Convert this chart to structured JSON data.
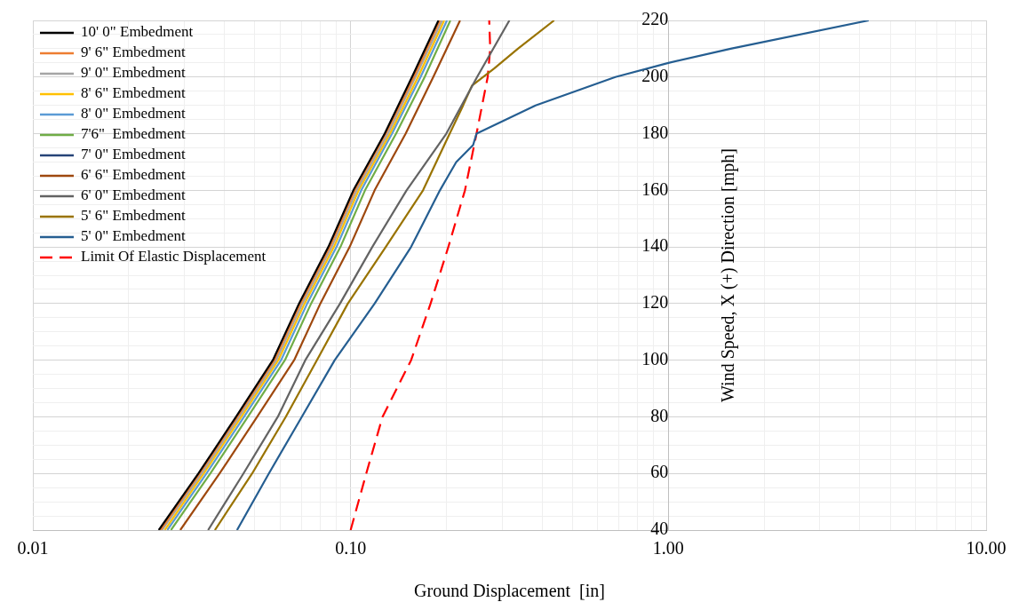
{
  "chart_data": {
    "type": "line",
    "xlabel": "Ground Displacement  [in]",
    "ylabel": "Wind Speed, X (+) Direction [mph]",
    "log": "x",
    "grid": true,
    "legend": "top left",
    "marker": "none",
    "xlim": [
      0.01,
      10
    ],
    "xticks": [
      {
        "value": 0.01,
        "label": "0.01"
      },
      {
        "value": 0.02,
        "label": null
      },
      {
        "value": 0.03,
        "label": null
      },
      {
        "value": 0.04,
        "label": null
      },
      {
        "value": 0.05,
        "label": null
      },
      {
        "value": 0.06,
        "label": null
      },
      {
        "value": 0.07,
        "label": null
      },
      {
        "value": 0.08,
        "label": null
      },
      {
        "value": 0.09,
        "label": null
      },
      {
        "value": 0.1,
        "label": "0.10"
      },
      {
        "value": 0.2,
        "label": null
      },
      {
        "value": 0.3,
        "label": null
      },
      {
        "value": 0.4,
        "label": null
      },
      {
        "value": 0.5,
        "label": null
      },
      {
        "value": 0.6,
        "label": null
      },
      {
        "value": 0.7,
        "label": null
      },
      {
        "value": 0.8,
        "label": null
      },
      {
        "value": 0.9,
        "label": null
      },
      {
        "value": 1,
        "label": "1.00"
      },
      {
        "value": 2,
        "label": null
      },
      {
        "value": 3,
        "label": null
      },
      {
        "value": 4,
        "label": null
      },
      {
        "value": 5,
        "label": null
      },
      {
        "value": 6,
        "label": null
      },
      {
        "value": 7,
        "label": null
      },
      {
        "value": 8,
        "label": null
      },
      {
        "value": 9,
        "label": null
      },
      {
        "value": 10,
        "label": "10.00"
      }
    ],
    "ylim": [
      40,
      220
    ],
    "yticks": [
      40,
      {
        "value": 45,
        "label": null
      },
      {
        "value": 50,
        "label": null
      },
      {
        "value": 55,
        "label": null
      },
      60,
      {
        "value": 65,
        "label": null
      },
      {
        "value": 70,
        "label": null
      },
      {
        "value": 75,
        "label": null
      },
      80,
      {
        "value": 85,
        "label": null
      },
      {
        "value": 90,
        "label": null
      },
      {
        "value": 95,
        "label": null
      },
      100,
      {
        "value": 105,
        "label": null
      },
      {
        "value": 110,
        "label": null
      },
      {
        "value": 115,
        "label": null
      },
      120,
      {
        "value": 125,
        "label": null
      },
      {
        "value": 130,
        "label": null
      },
      {
        "value": 135,
        "label": null
      },
      140,
      {
        "value": 145,
        "label": null
      },
      {
        "value": 150,
        "label": null
      },
      {
        "value": 155,
        "label": null
      },
      160,
      {
        "value": 165,
        "label": null
      },
      {
        "value": 170,
        "label": null
      },
      {
        "value": 175,
        "label": null
      },
      180,
      {
        "value": 185,
        "label": null
      },
      {
        "value": 190,
        "label": null
      },
      {
        "value": 195,
        "label": null
      },
      200,
      {
        "value": 205,
        "label": null
      },
      {
        "value": 210,
        "label": null
      },
      {
        "value": 215,
        "label": null
      },
      220
    ],
    "series": [
      {
        "name": "10' 0\" Embedment",
        "color": "#000000",
        "x": [
          0.0249,
          0.0332,
          0.0436,
          0.0569,
          0.0688,
          0.0851,
          0.102,
          0.128,
          0.156,
          0.189
        ],
        "values": [
          40,
          60,
          80,
          100,
          120,
          140,
          160,
          180,
          200,
          220
        ]
      },
      {
        "name": "9' 6\" Embedment",
        "color": "#ed7d31",
        "x": [
          0.0252,
          0.0335,
          0.044,
          0.0575,
          0.0695,
          0.086,
          0.103,
          0.129,
          0.158,
          0.191
        ],
        "values": [
          40,
          60,
          80,
          100,
          120,
          140,
          160,
          180,
          200,
          220
        ]
      },
      {
        "name": "9' 0\" Embedment",
        "color": "#a5a5a5",
        "x": [
          0.0255,
          0.034,
          0.0446,
          0.0583,
          0.0705,
          0.0872,
          0.1045,
          0.131,
          0.16,
          0.194
        ],
        "values": [
          40,
          60,
          80,
          100,
          120,
          140,
          160,
          180,
          200,
          220
        ]
      },
      {
        "name": "8' 6\" Embedment",
        "color": "#ffc000",
        "x": [
          0.026,
          0.0345,
          0.0453,
          0.0592,
          0.0716,
          0.0886,
          0.106,
          0.133,
          0.163,
          0.197
        ],
        "values": [
          40,
          60,
          80,
          100,
          120,
          140,
          160,
          180,
          200,
          220
        ]
      },
      {
        "name": "8' 0\" Embedment",
        "color": "#5b9bd5",
        "x": [
          0.0265,
          0.0352,
          0.0462,
          0.0604,
          0.073,
          0.0903,
          0.108,
          0.135,
          0.166,
          0.201
        ],
        "values": [
          40,
          60,
          80,
          100,
          120,
          140,
          160,
          180,
          200,
          220
        ]
      },
      {
        "name": "7'6\"  Embedment",
        "color": "#70ad47",
        "x": [
          0.0272,
          0.0362,
          0.0475,
          0.0621,
          0.0751,
          0.0929,
          0.111,
          0.139,
          0.171,
          0.206
        ],
        "values": [
          40,
          60,
          80,
          100,
          120,
          140,
          160,
          180,
          200,
          220
        ]
      },
      {
        "name": "7' 0\" Embedment",
        "color": "#264478",
        "x": [
          null
        ],
        "values": [
          null
        ]
      },
      {
        "name": "6' 6\" Embedment",
        "color": "#9e480e",
        "x": [
          0.0291,
          0.0387,
          0.0508,
          0.0664,
          0.0803,
          0.0993,
          0.119,
          0.149,
          0.182,
          0.221
        ],
        "values": [
          40,
          60,
          80,
          100,
          120,
          140,
          160,
          180,
          200,
          220
        ]
      },
      {
        "name": "6' 0\" Embedment",
        "color": "#636363",
        "x": [
          0.0356,
          0.046,
          0.059,
          0.072,
          0.0926,
          0.117,
          0.15,
          0.2,
          0.25,
          0.316
        ],
        "values": [
          40,
          60,
          80,
          100,
          120,
          140,
          160,
          180,
          200,
          220
        ]
      },
      {
        "name": "5' 6\" Embedment",
        "color": "#997300",
        "x": [
          0.0374,
          0.049,
          0.0625,
          0.0783,
          0.098,
          0.129,
          0.169,
          0.205,
          0.226,
          0.241,
          0.283,
          0.336,
          0.437
        ],
        "values": [
          40,
          60,
          80,
          100,
          120,
          140,
          160,
          180,
          190,
          197,
          203,
          210,
          220
        ]
      },
      {
        "name": "5' 0\" Embedment",
        "color": "#255e91",
        "x": [
          0.0439,
          0.0553,
          0.0702,
          0.0891,
          0.119,
          0.155,
          0.191,
          0.215,
          0.243,
          0.249,
          0.382,
          0.681,
          1.0,
          1.57,
          4.27
        ],
        "values": [
          40,
          60,
          80,
          100,
          120,
          140,
          160,
          170,
          176,
          180,
          190,
          200,
          205,
          210,
          220
        ]
      },
      {
        "name": "Limit Of Elastic Displacement",
        "color": "#ff0000",
        "line_style": "dashed",
        "x": [
          0.1,
          0.112,
          0.126,
          0.155,
          0.1785,
          0.203,
          0.229,
          0.249,
          0.27,
          0.275,
          0.273
        ],
        "values": [
          40,
          60,
          80,
          100,
          120,
          140,
          160,
          180,
          200,
          210,
          220
        ]
      }
    ]
  }
}
